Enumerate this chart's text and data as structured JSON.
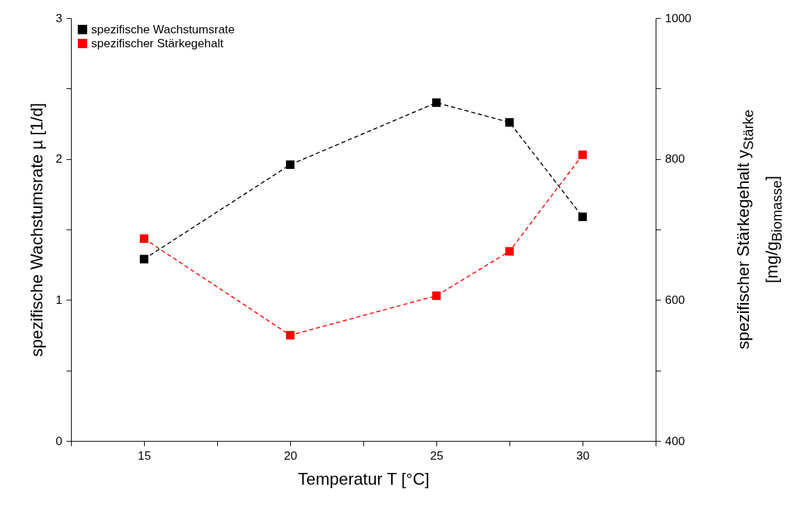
{
  "chart_data": {
    "type": "line",
    "xlabel": "Temperatur T [°C]",
    "ylabel": "spezifische Wachstumsrate µ [1/d]",
    "y2label": "spezifischer Stärkegehalt y$_{Stärke}$\n[mg/g$_{Biomasse}$]",
    "x": [
      15,
      20,
      25,
      27.5,
      30
    ],
    "series": [
      {
        "name": "spezifische Wachstumsrate",
        "color": "#000000",
        "values": [
          1.29,
          1.96,
          2.4,
          2.26,
          1.59
        ]
      },
      {
        "name": "spezifischer Stärkegehalt",
        "color": "#ff0000",
        "values": [
          687,
          550,
          606,
          669,
          806
        ],
        "axis": "y2"
      }
    ],
    "xlim": [
      12.5,
      32.5
    ],
    "xticks": [
      {
        "value": 12.5,
        "label": null
      },
      15,
      {
        "value": 17.5,
        "label": null
      },
      20,
      {
        "value": 22.5,
        "label": null
      },
      25,
      {
        "value": 27.5,
        "label": null
      },
      30,
      {
        "value": 32.5,
        "label": null
      }
    ],
    "ylim": [
      0,
      3
    ],
    "yticks": [
      0,
      {
        "value": 0.5,
        "label": null
      },
      1,
      {
        "value": 1.5,
        "label": null
      },
      2,
      {
        "value": 2.5,
        "label": null
      },
      3
    ],
    "y2lim": [
      400,
      1000
    ],
    "y2ticks": [
      400,
      {
        "value": 500,
        "label": null
      },
      600,
      {
        "value": 700,
        "label": null
      },
      800,
      {
        "value": 900,
        "label": null
      },
      1000
    ],
    "legend": "top left",
    "marker": "square",
    "line_style": "dashed",
    "grid": false
  }
}
